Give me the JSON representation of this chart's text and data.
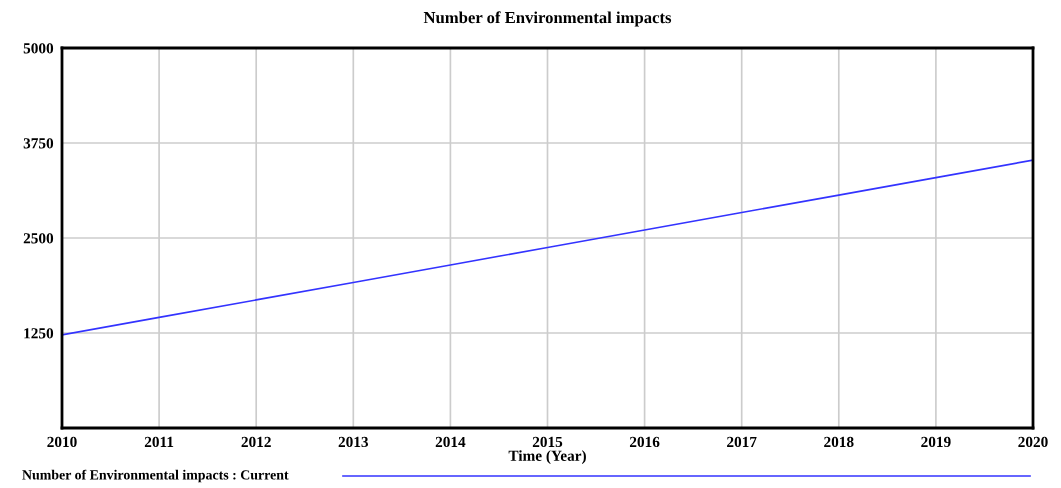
{
  "chart_data": {
    "type": "line",
    "title": "Number of Environmental impacts",
    "xlabel": "Time (Year)",
    "x": [
      2010,
      2011,
      2012,
      2013,
      2014,
      2015,
      2016,
      2017,
      2018,
      2019,
      2020
    ],
    "series": [
      {
        "name": "Number of Environmental impacts : Current",
        "color": "#3333ff",
        "values": [
          1225,
          1455,
          1685,
          1915,
          2145,
          2375,
          2605,
          2835,
          3065,
          3295,
          3525
        ]
      }
    ],
    "xlim": [
      2010,
      2020
    ],
    "xticks": [
      2010,
      2011,
      2012,
      2013,
      2014,
      2015,
      2016,
      2017,
      2018,
      2019,
      2020
    ],
    "ylim": [
      0,
      5000
    ],
    "yticks": [
      {
        "value": 0,
        "label": null
      },
      1250,
      2500,
      3750,
      5000
    ],
    "grid": true,
    "legend": "bottom",
    "marker": "none",
    "line_style": "solid"
  }
}
